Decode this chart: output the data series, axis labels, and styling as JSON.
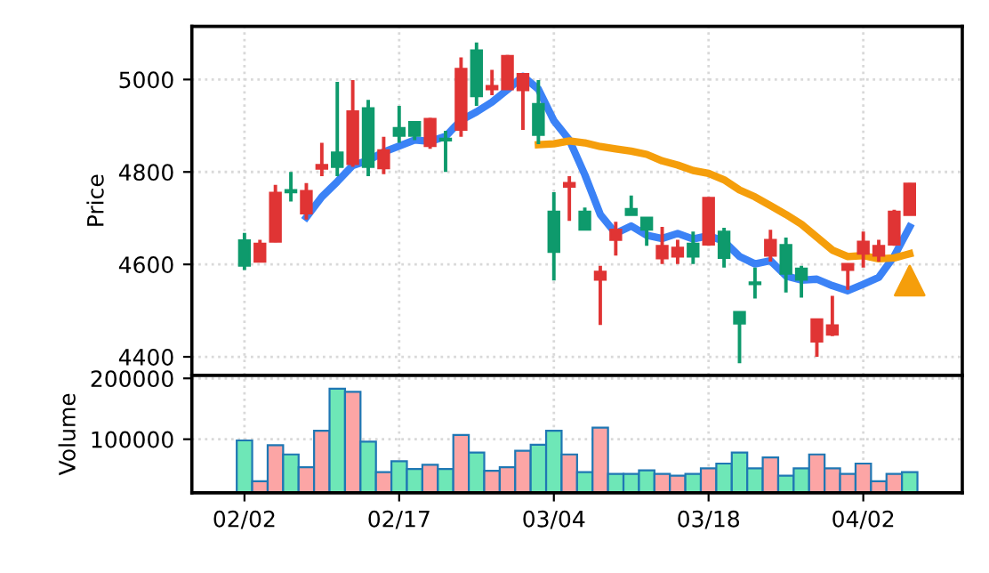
{
  "chart_data": [
    {
      "type": "candlestick",
      "ylabel": "Price",
      "ylim": [
        4360,
        5115
      ],
      "yticks": [
        4400,
        4600,
        4800,
        5000
      ],
      "grid": true,
      "categories": [
        null,
        null,
        null,
        null,
        null,
        null,
        null,
        null,
        null,
        null,
        null,
        null,
        null,
        null,
        null,
        null,
        null,
        null,
        null,
        null,
        null,
        null,
        null,
        null,
        null,
        null,
        null,
        null,
        null,
        null,
        null,
        null,
        null,
        null,
        null,
        null,
        null,
        null,
        null,
        null,
        null,
        null,
        null,
        null
      ],
      "ohlc": [
        [
          4652,
          4668,
          4588,
          4597
        ],
        [
          4606,
          4653,
          4605,
          4645
        ],
        [
          4649,
          4772,
          4648,
          4755
        ],
        [
          4761,
          4800,
          4736,
          4756
        ],
        [
          4710,
          4776,
          4697,
          4759
        ],
        [
          4807,
          4863,
          4791,
          4815
        ],
        [
          4842,
          4995,
          4791,
          4811
        ],
        [
          4817,
          4999,
          4811,
          4931
        ],
        [
          4938,
          4956,
          4791,
          4811
        ],
        [
          4808,
          4876,
          4795,
          4847
        ],
        [
          4895,
          4943,
          4863,
          4878
        ],
        [
          4908,
          4908,
          4869,
          4878
        ],
        [
          4856,
          4917,
          4850,
          4915
        ],
        [
          4872,
          4889,
          4800,
          4868
        ],
        [
          4891,
          5048,
          4876,
          5023
        ],
        [
          5063,
          5080,
          4943,
          4964
        ],
        [
          4979,
          5021,
          4966,
          4986
        ],
        [
          4979,
          5053,
          4978,
          5051
        ],
        [
          4977,
          5013,
          4891,
          5012
        ],
        [
          4947,
          4999,
          4860,
          4880
        ],
        [
          4714,
          4756,
          4565,
          4627
        ],
        [
          4768,
          4791,
          4694,
          4776
        ],
        [
          4714,
          4723,
          4674,
          4675
        ],
        [
          4567,
          4597,
          4469,
          4584
        ],
        [
          4653,
          4692,
          4619,
          4675
        ],
        [
          4720,
          4749,
          4706,
          4707
        ],
        [
          4701,
          4702,
          4640,
          4675
        ],
        [
          4613,
          4681,
          4601,
          4640
        ],
        [
          4617,
          4653,
          4601,
          4636
        ],
        [
          4645,
          4671,
          4601,
          4617
        ],
        [
          4643,
          4745,
          4640,
          4744
        ],
        [
          4671,
          4679,
          4593,
          4614
        ],
        [
          4497,
          4498,
          4386,
          4472
        ],
        [
          4561,
          4593,
          4526,
          4557
        ],
        [
          4619,
          4675,
          4606,
          4653
        ],
        [
          4642,
          4658,
          4539,
          4580
        ],
        [
          4591,
          4597,
          4528,
          4567
        ],
        [
          4433,
          4482,
          4400,
          4481
        ],
        [
          4448,
          4532,
          4445,
          4468
        ],
        [
          4588,
          4602,
          4545,
          4601
        ],
        [
          4623,
          4671,
          4593,
          4649
        ],
        [
          4619,
          4653,
          4606,
          4640
        ],
        [
          4643,
          4718,
          4640,
          4714
        ],
        [
          4707,
          4776,
          4706,
          4775
        ]
      ],
      "colors": [
        "#0e9a6c",
        "#e03434",
        "#e03434",
        "#0e9a6c",
        "#e03434",
        "#e03434",
        "#0e9a6c",
        "#e03434",
        "#0e9a6c",
        "#e03434",
        "#0e9a6c",
        "#0e9a6c",
        "#e03434",
        "#0e9a6c",
        "#e03434",
        "#0e9a6c",
        "#e03434",
        "#e03434",
        "#e03434",
        "#0e9a6c",
        "#0e9a6c",
        "#e03434",
        "#0e9a6c",
        "#e03434",
        "#e03434",
        "#0e9a6c",
        "#0e9a6c",
        "#e03434",
        "#e03434",
        "#0e9a6c",
        "#e03434",
        "#0e9a6c",
        "#0e9a6c",
        "#0e9a6c",
        "#e03434",
        "#0e9a6c",
        "#0e9a6c",
        "#e03434",
        "#e03434",
        "#e03434",
        "#e03434",
        "#e03434",
        "#e03434",
        "#e03434"
      ],
      "series": [
        {
          "type": "line",
          "color": "#3b82f6",
          "values": [
            null,
            null,
            null,
            null,
            4702,
            4746,
            4779,
            4814,
            4825,
            4843,
            4856,
            4869,
            4866,
            4877,
            4912,
            4930,
            4951,
            4978,
            5007,
            4979,
            4911,
            4869,
            4794,
            4708,
            4667,
            4683,
            4663,
            4656,
            4667,
            4655,
            4662,
            4650,
            4617,
            4601,
            4608,
            4575,
            4566,
            4568,
            4554,
            4543,
            4557,
            4572,
            4618,
            4681
          ]
        },
        {
          "type": "line",
          "color": "#f59e0b",
          "values": [
            null,
            null,
            null,
            null,
            null,
            null,
            null,
            null,
            null,
            null,
            null,
            null,
            null,
            null,
            null,
            null,
            null,
            null,
            null,
            4859,
            4861,
            4867,
            4863,
            4855,
            4850,
            4845,
            4838,
            4824,
            4815,
            4803,
            4797,
            4783,
            4761,
            4746,
            4727,
            4708,
            4687,
            4659,
            4631,
            4617,
            4619,
            4612,
            4614,
            4623
          ]
        },
        {
          "type": "scatter",
          "marker": "triangle",
          "color": "#f59e0b",
          "values": [
            null,
            null,
            null,
            null,
            null,
            null,
            null,
            null,
            null,
            null,
            null,
            null,
            null,
            null,
            null,
            null,
            null,
            null,
            null,
            null,
            null,
            null,
            null,
            null,
            null,
            null,
            null,
            null,
            null,
            null,
            null,
            null,
            null,
            null,
            null,
            null,
            null,
            null,
            null,
            null,
            null,
            null,
            null,
            4565
          ]
        }
      ]
    },
    {
      "type": "bar",
      "ylabel": "Volume",
      "ylim": [
        12000,
        205000
      ],
      "yticks": [
        100000,
        200000
      ],
      "grid": true,
      "categories": [
        "02/02",
        null,
        null,
        null,
        null,
        null,
        null,
        null,
        null,
        null,
        "02/17",
        null,
        null,
        null,
        null,
        null,
        null,
        null,
        null,
        null,
        "03/04",
        null,
        null,
        null,
        null,
        null,
        null,
        null,
        null,
        null,
        "03/18",
        null,
        null,
        null,
        null,
        null,
        null,
        null,
        null,
        null,
        "04/02",
        null,
        null,
        null
      ],
      "values": [
        98000,
        31000,
        90000,
        75000,
        54000,
        114000,
        183000,
        178000,
        96000,
        46000,
        64000,
        51000,
        58000,
        51000,
        107000,
        78000,
        48000,
        54000,
        81000,
        91000,
        114000,
        75000,
        46000,
        119000,
        43000,
        43000,
        49000,
        43000,
        40000,
        43000,
        52000,
        60000,
        78000,
        52000,
        70000,
        40000,
        52000,
        75000,
        52000,
        43000,
        60000,
        31000,
        43000,
        46000
      ],
      "colors": [
        "#6ee7b7",
        "#fca5a5",
        "#fca5a5",
        "#6ee7b7",
        "#fca5a5",
        "#fca5a5",
        "#6ee7b7",
        "#fca5a5",
        "#6ee7b7",
        "#fca5a5",
        "#6ee7b7",
        "#6ee7b7",
        "#fca5a5",
        "#6ee7b7",
        "#fca5a5",
        "#6ee7b7",
        "#fca5a5",
        "#fca5a5",
        "#fca5a5",
        "#6ee7b7",
        "#6ee7b7",
        "#fca5a5",
        "#6ee7b7",
        "#fca5a5",
        "#6ee7b7",
        "#6ee7b7",
        "#6ee7b7",
        "#fca5a5",
        "#fca5a5",
        "#6ee7b7",
        "#fca5a5",
        "#6ee7b7",
        "#6ee7b7",
        "#6ee7b7",
        "#fca5a5",
        "#6ee7b7",
        "#6ee7b7",
        "#fca5a5",
        "#fca5a5",
        "#fca5a5",
        "#fca5a5",
        "#fca5a5",
        "#fca5a5",
        "#6ee7b7"
      ]
    }
  ]
}
